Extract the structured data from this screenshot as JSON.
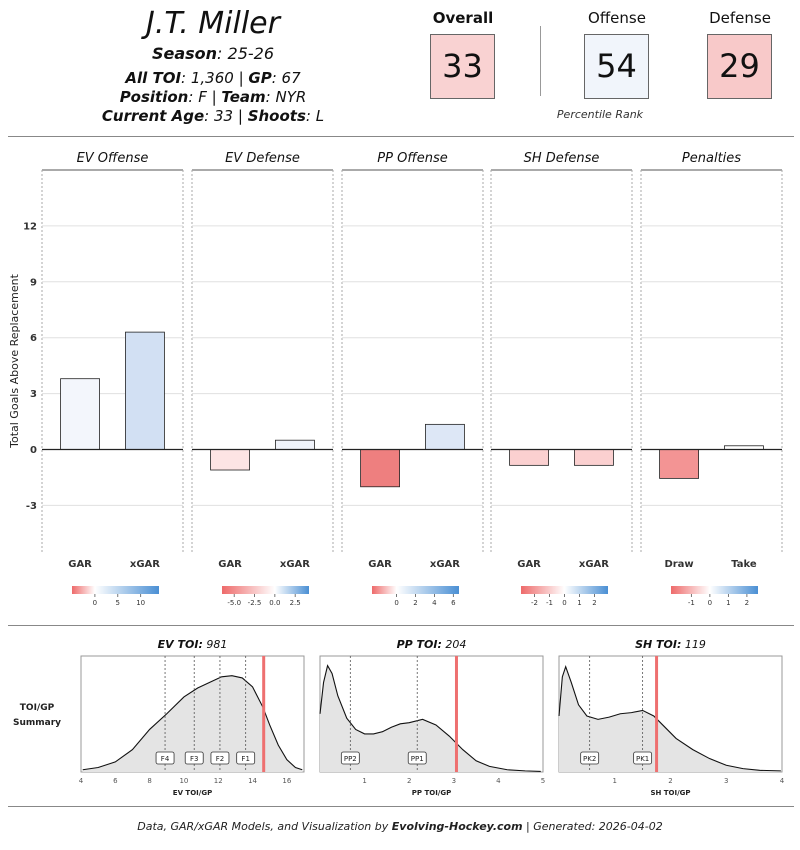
{
  "player": {
    "name": "J.T. Miller",
    "season_label": "Season",
    "season": "25-26",
    "toi_label": "All TOI",
    "toi": "1,360",
    "gp_label": "GP",
    "gp": "67",
    "position_label": "Position",
    "position": "F",
    "team_label": "Team",
    "team": "NYR",
    "age_label": "Current Age",
    "age": "33",
    "shoots_label": "Shoots",
    "shoots": "L"
  },
  "ratings": {
    "caption": "Percentile Rank",
    "items": [
      {
        "label": "Overall",
        "value": "33",
        "color": "#f9d2d2"
      },
      {
        "label": "Offense",
        "value": "54",
        "color": "#f1f5fb"
      },
      {
        "label": "Defense",
        "value": "29",
        "color": "#f8c9c9"
      }
    ]
  },
  "chart_data": [
    {
      "type": "bar",
      "ylabel": "Total Goals Above Replacement",
      "ylim": [
        -5.5,
        15
      ],
      "yticks": [
        -3,
        0,
        3,
        6,
        9,
        12
      ],
      "grid": true,
      "panels": [
        {
          "title": "EV Offense",
          "categories": [
            "GAR",
            "xGAR"
          ],
          "values": [
            3.8,
            6.3
          ],
          "colors": [
            "#f3f6fc",
            "#d2e0f3"
          ]
        },
        {
          "title": "EV Defense",
          "categories": [
            "GAR",
            "xGAR"
          ],
          "values": [
            -1.1,
            0.5
          ],
          "colors": [
            "#fde4e4",
            "#f0f3fa"
          ]
        },
        {
          "title": "PP Offense",
          "categories": [
            "GAR",
            "xGAR"
          ],
          "values": [
            -2.0,
            1.35
          ],
          "colors": [
            "#ee7f7f",
            "#dde7f6"
          ]
        },
        {
          "title": "SH Defense",
          "categories": [
            "GAR",
            "xGAR"
          ],
          "values": [
            -0.85,
            -0.85
          ],
          "colors": [
            "#fbd0d0",
            "#fbd0d0"
          ]
        },
        {
          "title": "Penalties",
          "categories": [
            "Draw",
            "Take"
          ],
          "values": [
            -1.55,
            0.2
          ],
          "colors": [
            "#f39494",
            "#ffffff"
          ]
        }
      ],
      "color_scales": [
        {
          "min": -5,
          "max": 14,
          "ticks": [
            "0",
            "5",
            "10"
          ],
          "tick_values": [
            0,
            5,
            10
          ]
        },
        {
          "min": -6.5,
          "max": 4.2,
          "ticks": [
            "-5.0",
            "-2.5",
            "0.0",
            "2.5"
          ],
          "tick_values": [
            -5,
            -2.5,
            0,
            2.5
          ]
        },
        {
          "min": -2.6,
          "max": 6.6,
          "ticks": [
            "0",
            "2",
            "4",
            "6"
          ],
          "tick_values": [
            0,
            2,
            4,
            6
          ]
        },
        {
          "min": -2.9,
          "max": 2.9,
          "ticks": [
            "-2",
            "-1",
            "0",
            "1",
            "2"
          ],
          "tick_values": [
            -2,
            -1,
            0,
            1,
            2
          ]
        },
        {
          "min": -2.1,
          "max": 2.6,
          "ticks": [
            "-1",
            "0",
            "1",
            "2"
          ],
          "tick_values": [
            -1,
            0,
            1,
            2
          ]
        }
      ]
    },
    {
      "type": "area",
      "side_label": [
        "TOI/GP",
        "Summary"
      ],
      "panels": [
        {
          "title_label": "EV TOI",
          "title_value": "981",
          "xlabel": "EV TOI/GP",
          "xlim": [
            4,
            17
          ],
          "xticks": [
            4,
            6,
            8,
            10,
            12,
            14,
            16
          ],
          "marker": 14.65,
          "refs": [
            {
              "label": "F4",
              "x": 8.9
            },
            {
              "label": "F3",
              "x": 10.6
            },
            {
              "label": "F2",
              "x": 12.1
            },
            {
              "label": "F1",
              "x": 13.6
            }
          ],
          "density": [
            [
              4.1,
              0.02
            ],
            [
              5,
              0.04
            ],
            [
              6,
              0.09
            ],
            [
              7,
              0.2
            ],
            [
              8,
              0.38
            ],
            [
              9,
              0.52
            ],
            [
              10,
              0.67
            ],
            [
              10.8,
              0.75
            ],
            [
              11.5,
              0.8
            ],
            [
              12.2,
              0.85
            ],
            [
              12.8,
              0.86
            ],
            [
              13.4,
              0.84
            ],
            [
              14,
              0.76
            ],
            [
              14.6,
              0.58
            ],
            [
              15,
              0.42
            ],
            [
              15.5,
              0.24
            ],
            [
              16,
              0.11
            ],
            [
              16.5,
              0.04
            ],
            [
              16.9,
              0.02
            ]
          ]
        },
        {
          "title_label": "PP TOI",
          "title_value": "204",
          "xlabel": "PP TOI/GP",
          "xlim": [
            0,
            5
          ],
          "xticks": [
            1,
            2,
            3,
            4,
            5
          ],
          "marker": 3.06,
          "refs": [
            {
              "label": "PP2",
              "x": 0.68
            },
            {
              "label": "PP1",
              "x": 2.18
            }
          ],
          "density": [
            [
              0,
              0.52
            ],
            [
              0.08,
              0.8
            ],
            [
              0.17,
              0.95
            ],
            [
              0.27,
              0.88
            ],
            [
              0.4,
              0.68
            ],
            [
              0.6,
              0.48
            ],
            [
              0.8,
              0.38
            ],
            [
              1.0,
              0.34
            ],
            [
              1.2,
              0.34
            ],
            [
              1.4,
              0.36
            ],
            [
              1.6,
              0.4
            ],
            [
              1.8,
              0.43
            ],
            [
              2.0,
              0.44
            ],
            [
              2.3,
              0.47
            ],
            [
              2.6,
              0.42
            ],
            [
              2.9,
              0.32
            ],
            [
              3.2,
              0.2
            ],
            [
              3.5,
              0.1
            ],
            [
              3.8,
              0.05
            ],
            [
              4.2,
              0.02
            ],
            [
              4.6,
              0.01
            ],
            [
              4.95,
              0.005
            ]
          ]
        },
        {
          "title_label": "SH TOI",
          "title_value": "119",
          "xlabel": "SH TOI/GP",
          "xlim": [
            0,
            4
          ],
          "xticks": [
            1,
            2,
            3,
            4
          ],
          "marker": 1.75,
          "refs": [
            {
              "label": "PK2",
              "x": 0.55
            },
            {
              "label": "PK1",
              "x": 1.5
            }
          ],
          "density": [
            [
              0,
              0.5
            ],
            [
              0.06,
              0.85
            ],
            [
              0.12,
              0.94
            ],
            [
              0.22,
              0.8
            ],
            [
              0.35,
              0.6
            ],
            [
              0.5,
              0.5
            ],
            [
              0.7,
              0.47
            ],
            [
              0.9,
              0.49
            ],
            [
              1.1,
              0.52
            ],
            [
              1.3,
              0.53
            ],
            [
              1.5,
              0.55
            ],
            [
              1.7,
              0.5
            ],
            [
              1.9,
              0.4
            ],
            [
              2.1,
              0.3
            ],
            [
              2.4,
              0.2
            ],
            [
              2.7,
              0.12
            ],
            [
              3.0,
              0.06
            ],
            [
              3.3,
              0.03
            ],
            [
              3.6,
              0.015
            ],
            [
              3.98,
              0.01
            ]
          ]
        }
      ]
    }
  ],
  "footer": {
    "prefix": "Data, GAR/xGAR Models, and Visualization by",
    "site": "Evolving-Hockey.com",
    "suffix": "| Generated: 2026-04-02"
  }
}
